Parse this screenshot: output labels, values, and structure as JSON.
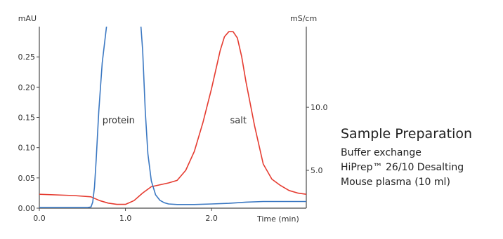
{
  "chart_data": {
    "type": "line",
    "title": "",
    "xlabel": "Time (min)",
    "ylabel_left": "mAU",
    "ylabel_right": "mS/cm",
    "xlim": [
      0,
      3.1
    ],
    "ylim_left": [
      0,
      0.3
    ],
    "ylim_right": [
      2.0,
      16.4
    ],
    "x_ticks": [
      "0.0",
      "1.0",
      "2.0"
    ],
    "y_ticks_left": [
      "0.00",
      "0.05",
      "0.10",
      "0.15",
      "0.20",
      "0.25"
    ],
    "y_ticks_right": [
      "5.0",
      "10.0"
    ],
    "series": [
      {
        "name": "protein",
        "axis": "left",
        "color": "#3b78c2",
        "x": [
          0,
          0.5,
          0.56,
          0.6,
          0.62,
          0.64,
          0.66,
          0.69,
          0.73,
          0.78,
          0.82,
          1.17,
          1.2,
          1.23,
          1.26,
          1.3,
          1.35,
          1.4,
          1.45,
          1.5,
          1.6,
          1.8,
          2.0,
          2.2,
          2.4,
          2.6,
          2.8,
          3.1
        ],
        "values": [
          0.001,
          0.001,
          0.001,
          0.002,
          0.01,
          0.035,
          0.08,
          0.16,
          0.24,
          0.3,
          0.32,
          0.32,
          0.26,
          0.16,
          0.09,
          0.045,
          0.022,
          0.013,
          0.009,
          0.007,
          0.006,
          0.006,
          0.007,
          0.008,
          0.01,
          0.011,
          0.011,
          0.011
        ]
      },
      {
        "name": "salt",
        "axis": "right",
        "color": "#e53b30",
        "x": [
          0,
          0.4,
          0.6,
          0.7,
          0.8,
          0.9,
          1.0,
          1.1,
          1.2,
          1.3,
          1.5,
          1.6,
          1.7,
          1.8,
          1.9,
          2.0,
          2.05,
          2.1,
          2.15,
          2.2,
          2.25,
          2.3,
          2.35,
          2.4,
          2.5,
          2.6,
          2.7,
          2.8,
          2.9,
          3.0,
          3.1
        ],
        "values": [
          3.1,
          3.0,
          2.9,
          2.6,
          2.4,
          2.3,
          2.3,
          2.6,
          3.2,
          3.7,
          4.0,
          4.2,
          5.0,
          6.5,
          8.8,
          11.5,
          13.0,
          14.5,
          15.6,
          16.0,
          16.0,
          15.5,
          14.0,
          12.0,
          8.5,
          5.5,
          4.3,
          3.8,
          3.4,
          3.2,
          3.1
        ]
      }
    ],
    "annotations": [
      {
        "text": "protein",
        "x": 0.92,
        "y": 0.14,
        "axis": "left"
      },
      {
        "text": "salt",
        "x": 2.31,
        "y": 0.14,
        "axis": "left"
      }
    ]
  },
  "info": {
    "title": "Sample Preparation",
    "lines": [
      "Buffer exchange",
      "HiPrep™ 26/10 Desalting",
      "Mouse plasma (10 ml)"
    ]
  }
}
